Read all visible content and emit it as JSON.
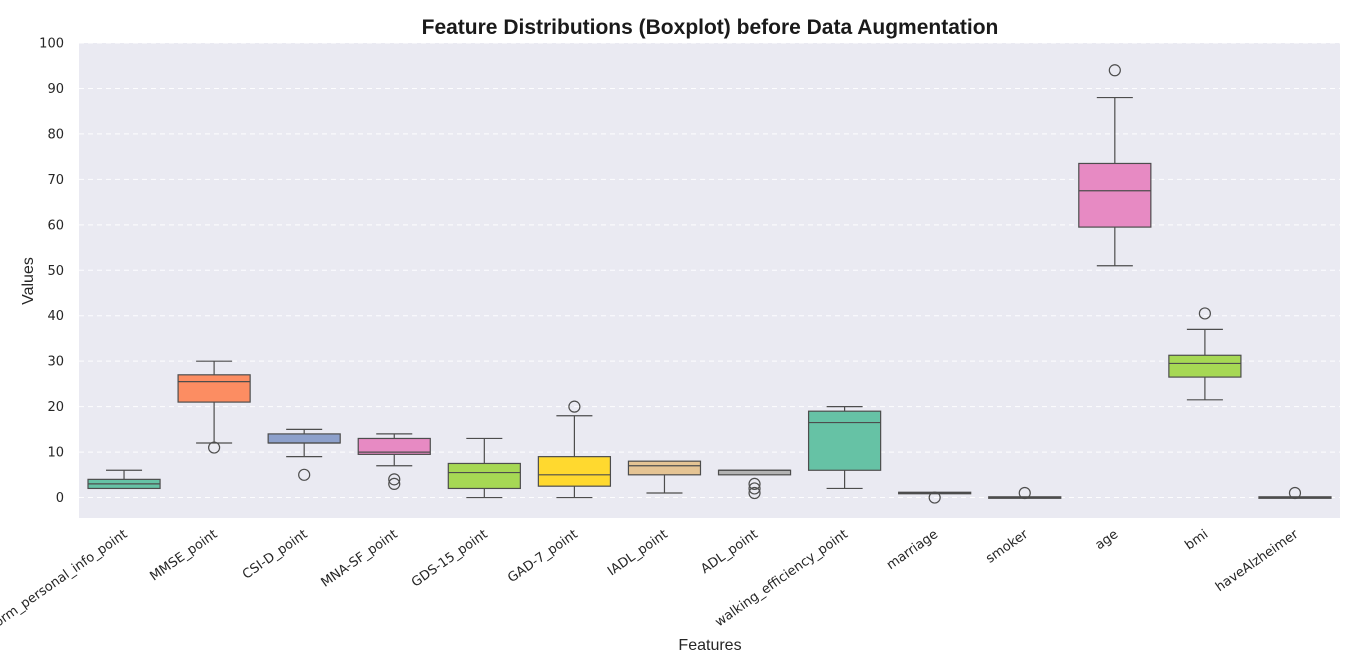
{
  "chart_data": {
    "type": "boxplot",
    "title": "Feature Distributions (Boxplot) before Data Augmentation",
    "xlabel": "Features",
    "ylabel": "Values",
    "ylim": [
      -4.5,
      100
    ],
    "yticks": [
      0,
      10,
      20,
      30,
      40,
      50,
      60,
      70,
      80,
      90,
      100
    ],
    "grid": true,
    "categories": [
      "form_personal_info_point",
      "MMSE_point",
      "CSI-D_point",
      "MNA-SF_point",
      "GDS-15_point",
      "GAD-7_point",
      "IADL_point",
      "ADL_point",
      "walking_efficiency_point",
      "marriage",
      "smoker",
      "age",
      "bmi",
      "haveAlzheimer"
    ],
    "boxes": [
      {
        "name": "form_personal_info_point",
        "color": "#66c2a5",
        "whisker_low": 2,
        "q1": 2,
        "median": 3,
        "q3": 4,
        "whisker_high": 6,
        "outliers": []
      },
      {
        "name": "MMSE_point",
        "color": "#fc8d62",
        "whisker_low": 12,
        "q1": 21,
        "median": 25.5,
        "q3": 27,
        "whisker_high": 30,
        "outliers": [
          11
        ]
      },
      {
        "name": "CSI-D_point",
        "color": "#8da0cb",
        "whisker_low": 9,
        "q1": 12,
        "median": 12,
        "q3": 14,
        "whisker_high": 15,
        "outliers": [
          5
        ]
      },
      {
        "name": "MNA-SF_point",
        "color": "#e78ac3",
        "whisker_low": 7,
        "q1": 9.5,
        "median": 10,
        "q3": 13,
        "whisker_high": 14,
        "outliers": [
          3,
          4
        ]
      },
      {
        "name": "GDS-15_point",
        "color": "#a6d854",
        "whisker_low": 0,
        "q1": 2,
        "median": 5.5,
        "q3": 7.5,
        "whisker_high": 13,
        "outliers": []
      },
      {
        "name": "GAD-7_point",
        "color": "#ffd92f",
        "whisker_low": 0,
        "q1": 2.5,
        "median": 5,
        "q3": 9,
        "whisker_high": 18,
        "outliers": [
          20
        ]
      },
      {
        "name": "IADL_point",
        "color": "#e5c494",
        "whisker_low": 1,
        "q1": 5,
        "median": 7,
        "q3": 8,
        "whisker_high": 8,
        "outliers": []
      },
      {
        "name": "ADL_point",
        "color": "#b3b3b3",
        "whisker_low": 5,
        "q1": 5,
        "median": 6,
        "q3": 6,
        "whisker_high": 6,
        "outliers": [
          1,
          2,
          3
        ]
      },
      {
        "name": "walking_efficiency_point",
        "color": "#66c2a5",
        "whisker_low": 2,
        "q1": 6,
        "median": 16.5,
        "q3": 19,
        "whisker_high": 20,
        "outliers": []
      },
      {
        "name": "marriage",
        "color": "#fc8d62",
        "whisker_low": 1,
        "q1": 1,
        "median": 1,
        "q3": 1,
        "whisker_high": 1,
        "outliers": [
          0
        ]
      },
      {
        "name": "smoker",
        "color": "#8da0cb",
        "whisker_low": 0,
        "q1": 0,
        "median": 0,
        "q3": 0,
        "whisker_high": 0,
        "outliers": [
          1
        ]
      },
      {
        "name": "age",
        "color": "#e78ac3",
        "whisker_low": 51,
        "q1": 59.5,
        "median": 67.5,
        "q3": 73.5,
        "whisker_high": 88,
        "outliers": [
          94
        ]
      },
      {
        "name": "bmi",
        "color": "#a6d854",
        "whisker_low": 21.5,
        "q1": 26.5,
        "median": 29.5,
        "q3": 31.3,
        "whisker_high": 37,
        "outliers": [
          40.5
        ]
      },
      {
        "name": "haveAlzheimer",
        "color": "#ffd92f",
        "whisker_low": 0,
        "q1": 0,
        "median": 0,
        "q3": 0,
        "whisker_high": 0,
        "outliers": [
          1
        ]
      }
    ]
  }
}
